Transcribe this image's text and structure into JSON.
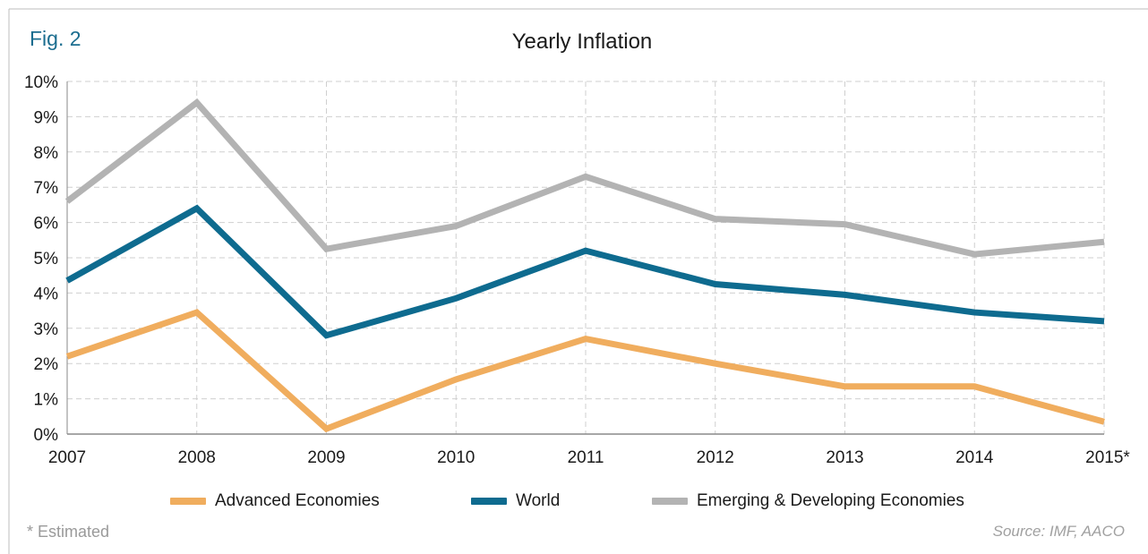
{
  "figure_label": "Fig. 2",
  "footnote": "* Estimated",
  "source": "Source: IMF, AACO",
  "chart_data": {
    "type": "line",
    "title": "Yearly Inflation",
    "xlabel": "",
    "ylabel": "",
    "categories": [
      "2007",
      "2008",
      "2009",
      "2010",
      "2011",
      "2012",
      "2013",
      "2014",
      "2015*"
    ],
    "y_ticks": [
      "0%",
      "1%",
      "2%",
      "3%",
      "4%",
      "5%",
      "6%",
      "7%",
      "8%",
      "9%",
      "10%"
    ],
    "ylim": [
      0,
      10
    ],
    "grid": true,
    "legend_position": "bottom",
    "series": [
      {
        "name": "Advanced Economies",
        "color": "#f0ad5e",
        "values": [
          2.2,
          3.45,
          0.15,
          1.55,
          2.7,
          2.0,
          1.35,
          1.35,
          0.35
        ]
      },
      {
        "name": "World",
        "color": "#0e6b8f",
        "values": [
          4.35,
          6.4,
          2.8,
          3.85,
          5.2,
          4.25,
          3.95,
          3.45,
          3.2
        ]
      },
      {
        "name": "Emerging & Developing Economies",
        "color": "#b3b3b3",
        "values": [
          6.6,
          9.4,
          5.25,
          5.9,
          7.3,
          6.1,
          5.95,
          5.1,
          5.45
        ]
      }
    ]
  }
}
